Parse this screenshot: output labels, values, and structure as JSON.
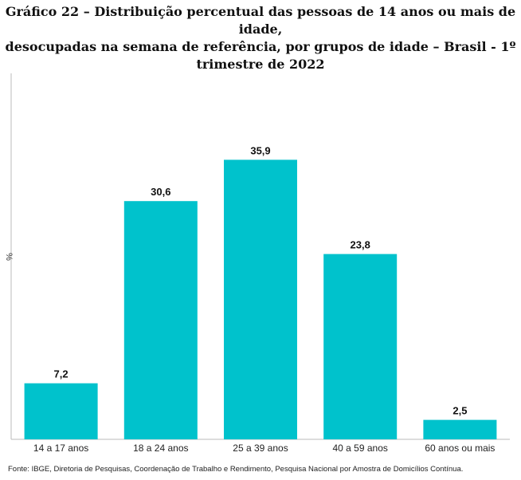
{
  "chart_data": {
    "type": "bar",
    "title_lines": [
      "Gráfico 22 – Distribuição percentual das pessoas de 14 anos ou mais de idade,",
      "desocupadas na semana de referência, por grupos de idade – Brasil - 1º",
      "trimestre de 2022"
    ],
    "xlabel": "",
    "ylabel": "%",
    "categories": [
      "14 a 17 anos",
      "18 a 24 anos",
      "25 a 39 anos",
      "40 a 59 anos",
      "60 anos ou mais"
    ],
    "values": [
      7.2,
      30.6,
      35.9,
      23.8,
      2.5
    ],
    "value_labels": [
      "7,2",
      "30,6",
      "35,9",
      "23,8",
      "2,5"
    ],
    "ylim": [
      0,
      47
    ],
    "grid": false,
    "legend": "none",
    "bar_color": "#00c2cc"
  },
  "source": "Fonte: IBGE, Diretoria de Pesquisas, Coordenação de Trabalho e Rendimento, Pesquisa Nacional por Amostra de Domicílios Contínua."
}
